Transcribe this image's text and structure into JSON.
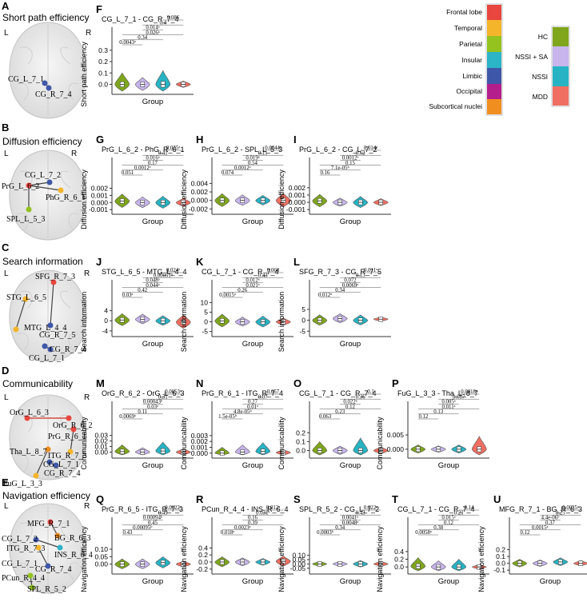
{
  "colors": {
    "HC": "#7fa61c",
    "NSSI + SA": "#c7b5ec",
    "NSSI": "#27b3c3",
    "MDD": "#ef6f62",
    "Frontal lobe": "#e8463f",
    "Temporal": "#f5b52b",
    "Parietal": "#94c21f",
    "Insular": "#2cb4c7",
    "Limbic": "#3f57a8",
    "Occipital": "#b41e8c",
    "Subcortical nuclei": "#f08e1f"
  },
  "groups": [
    "HC",
    "NSSI + SA",
    "NSSI",
    "MDD"
  ],
  "xlabel": "Group",
  "legend_lobes": [
    "Frontal lobe",
    "Temporal",
    "Parietal",
    "Insular",
    "Limbic",
    "Occipital",
    "Subcortical nuclei"
  ],
  "rows": [
    {
      "letter": "A",
      "title": "Short path efficiency"
    },
    {
      "letter": "B",
      "title": "Diffusion efficiency"
    },
    {
      "letter": "C",
      "title": "Search information"
    },
    {
      "letter": "D",
      "title": "Communicability"
    },
    {
      "letter": "E",
      "title": "Navigation efficiency"
    }
  ],
  "brain_labels": {
    "A": [
      "L",
      "R",
      "CG_L_7_1",
      "CG_R_7_4"
    ],
    "B": [
      "L",
      "R",
      "CG_L_7_2",
      "PrG_L_6_2",
      "PhG_R_6_1",
      "SPL_L_5_3"
    ],
    "C": [
      "L",
      "R",
      "SFG_R_7_3",
      "STG_L_6_5",
      "CG_R_7_5",
      "MTG_L_4_4",
      "CG_R_7_4",
      "CG_L_7_1"
    ],
    "D": [
      "L",
      "R",
      "OrG_L_6_3",
      "OrG_R_6_2",
      "PrG_R_6_1",
      "Tha_L_8_7",
      "ITG_R_7_3",
      "CG_L_7_1",
      "CG_R_7_4",
      "FuG_L_3_3"
    ],
    "E": [
      "L",
      "R",
      "MFG_R_7_1",
      "BG_R_6_3",
      "CG_L_7_2",
      "ITG_R_7_3",
      "CG_L_7_1",
      "INS_R_6_4",
      "CG_R_7_4",
      "PCun_R_4_4",
      "SPL_R_5_2"
    ]
  },
  "chart_data": [
    {
      "type": "violin",
      "panel": "F",
      "title": "CG_L_7_1 - CG_R_7_4",
      "ylabel": "Short path efficiency",
      "ylim": [
        -0.06,
        0.32
      ],
      "yticks": [
        "0.0",
        "0.1",
        "0.2",
        "0.3"
      ],
      "tickvals": [
        0.0,
        0.1,
        0.2,
        0.3
      ],
      "medians": [
        0.0,
        0.0,
        0.0,
        0.0
      ],
      "spreads": [
        0.1,
        0.06,
        0.12,
        0.03
      ],
      "pvalues": [
        "0.0043ᵃ",
        "0.34",
        "0.026ᵃ",
        "0.014ᵃ",
        "0.4",
        "0.086"
      ]
    },
    {
      "type": "violin",
      "panel": "G",
      "title": "PrG_L_6_2 - PhG_R_6_1",
      "ylabel": "Diffusion efficiency",
      "ylim": [
        -0.0012,
        0.0034
      ],
      "yticks": [
        "-0.001",
        "0.000",
        "0.001",
        "0.002"
      ],
      "tickvals": [
        -0.001,
        0.0,
        0.001,
        0.002
      ],
      "medians": [
        0.0002,
        0.0,
        0.0,
        0.0
      ],
      "spreads": [
        0.001,
        0.0008,
        0.0009,
        0.0006
      ],
      "pvalues": [
        "0.051",
        "0.0012ᵃ",
        "0.17",
        "0.016ᵃ",
        "0.41",
        "0.035ᵃ"
      ]
    },
    {
      "type": "violin",
      "panel": "H",
      "title": "PrG_L_6_2 - SPL_L_5_3",
      "ylabel": "Diffusion efficiency",
      "ylim": [
        -0.0025,
        0.0052
      ],
      "yticks": [
        "-0.002",
        "0.000",
        "0.002",
        "0.004"
      ],
      "tickvals": [
        -0.002,
        0.0,
        0.002,
        0.004
      ],
      "medians": [
        0.0,
        0.0,
        0.0,
        0.0
      ],
      "spreads": [
        0.0016,
        0.0013,
        0.0012,
        0.0017
      ],
      "pvalues": [
        "0.074",
        "0.0012ᵃ",
        "0.54",
        "0.019ᵃ",
        "0.11",
        "0.0044ᵃ"
      ]
    },
    {
      "type": "violin",
      "panel": "I",
      "title": "PrG_L_6_2 - CG_L_7_2",
      "ylabel": "Diffusion efficiency",
      "ylim": [
        -0.0012,
        0.0033
      ],
      "yticks": [
        "-0.001",
        "0.000",
        "0.001",
        "0.002"
      ],
      "tickvals": [
        -0.001,
        0.0,
        0.001,
        0.002
      ],
      "medians": [
        0.0002,
        0.0,
        0.0,
        0.0
      ],
      "spreads": [
        0.0009,
        0.0006,
        0.0008,
        0.0005
      ],
      "pvalues": [
        "0.16",
        "7.1e-05ᵇ",
        "0.15",
        "0.0012ᵃ",
        "0.62",
        "0.014ᵃ"
      ]
    },
    {
      "type": "violin",
      "panel": "J",
      "title": "STG_L_6_5 - MTG_L_4_4",
      "ylabel": "Search information",
      "ylim": [
        -5,
        8
      ],
      "yticks": [
        "-4",
        "0",
        "4"
      ],
      "tickvals": [
        -4,
        0,
        4
      ],
      "medians": [
        0.3,
        0.6,
        0.0,
        -0.5
      ],
      "spreads": [
        2.5,
        2.0,
        2.0,
        2.8
      ],
      "pvalues": [
        "0.03ᵃ",
        "0.42",
        "0.044ᵃ",
        "0.048ᵃ",
        "0.00051ᵇ",
        "0.024ᵃ"
      ]
    },
    {
      "type": "violin",
      "panel": "K",
      "title": "CG_L_7_1 - CG_R_7_4",
      "ylabel": "Search information",
      "ylim": [
        -6,
        11
      ],
      "yticks": [
        "-5",
        "0",
        "5",
        "10"
      ],
      "tickvals": [
        -5,
        0,
        5,
        10
      ],
      "medians": [
        0.5,
        0.0,
        0.0,
        0.0
      ],
      "spreads": [
        3.5,
        2.5,
        3.0,
        2.0
      ],
      "pvalues": [
        "0.0015ᵃ",
        "0.26",
        "0.021ᵃ",
        "0.012ᵃ",
        "0.43",
        "0.068"
      ]
    },
    {
      "type": "violin",
      "panel": "L",
      "title": "SFG_R_7_3 - CG_R_7_5",
      "ylabel": "Search information",
      "ylim": [
        -6,
        9
      ],
      "yticks": [
        "-5",
        "0",
        "5"
      ],
      "tickvals": [
        -5,
        0,
        5
      ],
      "medians": [
        0.0,
        0.8,
        0.0,
        0.5
      ],
      "spreads": [
        2.5,
        2.2,
        2.4,
        1.0
      ],
      "pvalues": [
        "0.012ᵃ",
        "0.34",
        "0.0069ᵃ",
        "0.072",
        "0.13",
        "0.011ᵃ"
      ]
    },
    {
      "type": "violin",
      "panel": "M",
      "title": "OrG_R_6_2 - OrG_L_6_3",
      "ylabel": "Communicability",
      "ylim": [
        -0.005,
        0.054
      ],
      "yticks": [
        "0.00",
        "0.01",
        "0.02",
        "0.03"
      ],
      "tickvals": [
        0.0,
        0.01,
        0.02,
        0.03
      ],
      "medians": [
        0.001,
        0.0,
        0.002,
        0.0
      ],
      "spreads": [
        0.012,
        0.008,
        0.016,
        0.006
      ],
      "pvalues": [
        "0.0069ᵃ",
        "0.11",
        "0.03ᵃ",
        "0.00043ᵇ",
        "0.31",
        "0.0053ᵃ"
      ]
    },
    {
      "type": "violin",
      "panel": "N",
      "title": "PrG_R_6_1 - ITG_R_7_4",
      "ylabel": "Communicability",
      "ylim": [
        -0.0003,
        0.0053
      ],
      "yticks": [
        "0.000",
        "0.001",
        "0.002",
        "0.003"
      ],
      "tickvals": [
        0.0,
        0.001,
        0.002,
        0.003
      ],
      "medians": [
        0.0,
        0.0002,
        0.0003,
        0.0001
      ],
      "spreads": [
        0.001,
        0.0012,
        0.0015,
        0.0005
      ],
      "pvalues": [
        "1.5e-05ᵇ",
        "4.8e-05ᵇ",
        "0.01ᵃ",
        "0.27",
        "0.07",
        "0.057"
      ]
    },
    {
      "type": "violin",
      "panel": "O",
      "title": "CG_L_7_1 - CG_R_7_4",
      "ylabel": "Communicability",
      "ylim": [
        -0.05,
        0.32
      ],
      "yticks": [
        "0.0",
        "0.1",
        "0.2"
      ],
      "tickvals": [
        0.0,
        0.1,
        0.2
      ],
      "medians": [
        0.0,
        0.0,
        0.0,
        0.0
      ],
      "spreads": [
        0.1,
        0.05,
        0.14,
        0.04
      ],
      "pvalues": [
        "0.063",
        "0.23",
        "0.12",
        "0.022ᵃ",
        "0.36",
        "0.1"
      ]
    },
    {
      "type": "violin",
      "panel": "P",
      "title": "FuG_L_3_3 - Tha_L_8_7",
      "ylabel": "Communicability",
      "ylim": [
        -0.002,
        0.0095
      ],
      "yticks": [
        "0.000",
        "0.005"
      ],
      "tickvals": [
        0.0,
        0.005
      ],
      "medians": [
        0.0,
        0.0,
        0.0,
        0.0
      ],
      "spreads": [
        0.0015,
        0.0012,
        0.0015,
        0.0045
      ],
      "pvalues": [
        "0.12",
        "0.13",
        "0.011ᵃ",
        "0.005ᵃ",
        "0.087",
        "0.0018ᵃ"
      ]
    },
    {
      "type": "violin",
      "panel": "Q",
      "title": "PrG_R_6_5 - ITG_R_7_3",
      "ylabel": "Navigation efficiency",
      "ylim": [
        -0.045,
        0.175
      ],
      "yticks": [
        "0.00",
        "0.05",
        "0.10"
      ],
      "tickvals": [
        0.0,
        0.05,
        0.1
      ],
      "medians": [
        0.0,
        0.0,
        0.01,
        0.0
      ],
      "spreads": [
        0.035,
        0.035,
        0.04,
        0.02
      ],
      "pvalues": [
        "0.43",
        "0.00095ᵇ",
        "0.45",
        "0.00094ᵇ",
        "0.49",
        "0.0022ᵃ"
      ]
    },
    {
      "type": "violin",
      "panel": "R",
      "title": "PCun_R_4_4 - INS_R_6_4",
      "ylabel": "Navigation efficiency",
      "ylim": [
        -0.25,
        0.68
      ],
      "yticks": [
        "-0.2",
        "0.0",
        "0.2",
        "0.4"
      ],
      "tickvals": [
        -0.2,
        0.0,
        0.2,
        0.4
      ],
      "medians": [
        0.0,
        0.0,
        0.0,
        0.02
      ],
      "spreads": [
        0.15,
        0.12,
        0.1,
        0.15
      ],
      "pvalues": [
        "0.018ᵃ",
        "0.0023ᵃ",
        "0.39",
        "0.16",
        "0.031ᵃ",
        "0.012ᵃ"
      ]
    },
    {
      "type": "violin",
      "panel": "S",
      "title": "SPL_R_5_2 - CG_L_7_2",
      "ylabel": "Navigation efficiency",
      "ylim": [
        -0.08,
        0.3
      ],
      "yticks": [
        "-0.05",
        "0.00",
        "0.05",
        "0.10"
      ],
      "tickvals": [
        -0.05,
        0.0,
        0.05,
        0.1
      ],
      "medians": [
        0.0,
        0.0,
        0.0,
        0.0
      ],
      "spreads": [
        0.03,
        0.03,
        0.04,
        0.03
      ],
      "pvalues": [
        "0.0003ᵇ",
        "0.34",
        "0.0048ᵃ",
        "0.0041ᵃ",
        "0.43",
        "0.022ᵃ"
      ]
    },
    {
      "type": "violin",
      "panel": "T",
      "title": "CG_L_7_1 - CG_R_7_4",
      "ylabel": "Navigation efficiency",
      "ylim": [
        -0.1,
        0.75
      ],
      "yticks": [
        "0.0",
        "0.2",
        "0.4"
      ],
      "tickvals": [
        0.0,
        0.2,
        0.4
      ],
      "medians": [
        0.02,
        0.0,
        0.0,
        0.0
      ],
      "spreads": [
        0.22,
        0.16,
        0.2,
        0.06
      ],
      "pvalues": [
        "0.0058ᵃ",
        "0.38",
        "0.12",
        "0.015ᵃ",
        "0.21",
        "0.14"
      ]
    },
    {
      "type": "violin",
      "panel": "U",
      "title": "MFG_R_7_1 - BG_R_6_3",
      "ylabel": "Navigation efficiency",
      "ylim": [
        -0.11,
        0.37
      ],
      "yticks": [
        "-0.1",
        "0.0",
        "0.1",
        "0.2"
      ],
      "tickvals": [
        -0.1,
        0.0,
        0.1,
        0.2
      ],
      "medians": [
        0.0,
        0.0,
        0.02,
        0.0
      ],
      "spreads": [
        0.06,
        0.05,
        0.06,
        0.04
      ],
      "pvalues": [
        "0.12",
        "0.0015ᵃ",
        "0.37",
        "4.4e-06ᵇ",
        "0.25",
        "0.0035ᵃ"
      ]
    }
  ]
}
